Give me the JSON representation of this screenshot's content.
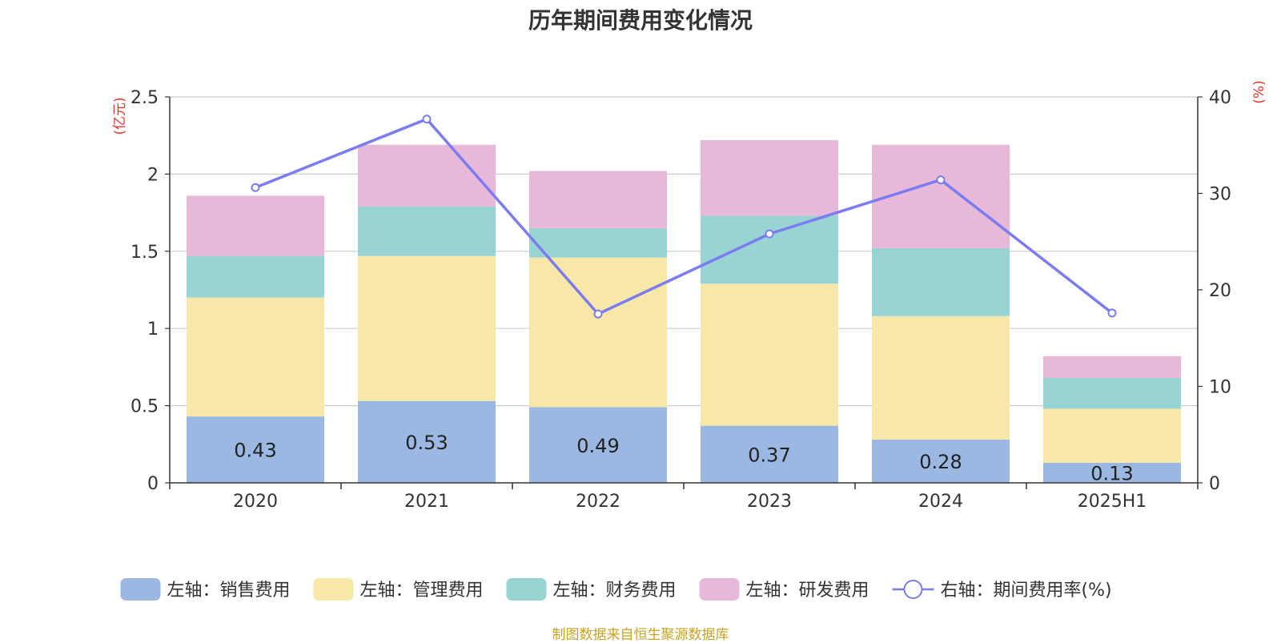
{
  "chart_data": {
    "type": "bar",
    "title": "历年期间费用变化情况",
    "categories": [
      "2020",
      "2021",
      "2022",
      "2023",
      "2024",
      "2025H1"
    ],
    "left_unit": "(亿元)",
    "right_unit": "(%)",
    "left_ylim": [
      0,
      2.5
    ],
    "left_ticks": [
      "0",
      "0.5",
      "1",
      "1.5",
      "2",
      "2.5"
    ],
    "right_ylim": [
      0,
      40
    ],
    "right_ticks": [
      "0",
      "10",
      "20",
      "30",
      "40"
    ],
    "grid": true,
    "legend_position": "bottom",
    "series": [
      {
        "name": "左轴：销售费用",
        "axis": "left",
        "kind": "bar",
        "color": "#9bb8e3",
        "values": [
          0.43,
          0.53,
          0.49,
          0.37,
          0.28,
          0.13
        ],
        "labels": [
          "0.43",
          "0.53",
          "0.49",
          "0.37",
          "0.28",
          "0.13"
        ]
      },
      {
        "name": "左轴：管理费用",
        "axis": "left",
        "kind": "bar",
        "color": "#f7e7a8",
        "values": [
          0.77,
          0.94,
          0.97,
          0.92,
          0.8,
          0.35
        ]
      },
      {
        "name": "左轴：财务费用",
        "axis": "left",
        "kind": "bar",
        "color": "#98d4d4",
        "values": [
          0.27,
          0.32,
          0.19,
          0.44,
          0.44,
          0.2
        ]
      },
      {
        "name": "左轴：研发费用",
        "axis": "left",
        "kind": "bar",
        "color": "#e8b8d9",
        "values": [
          0.39,
          0.4,
          0.37,
          0.49,
          0.67,
          0.14
        ]
      },
      {
        "name": "右轴：期间费用率(%)",
        "axis": "right",
        "kind": "line",
        "color": "#7b7cf0",
        "values": [
          30.6,
          37.7,
          17.5,
          25.8,
          31.4,
          17.6
        ]
      }
    ],
    "source_note": "制图数据来自恒生聚源数据库"
  }
}
